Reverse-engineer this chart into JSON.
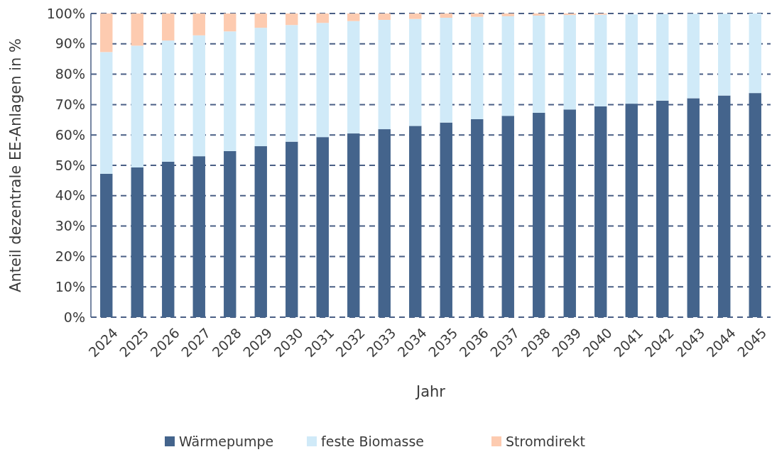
{
  "chart_data": {
    "type": "bar",
    "stacked": true,
    "xlabel": "Jahr",
    "ylabel": "Anteil dezentrale EE-Anlagen in %",
    "categories": [
      "2024",
      "2025",
      "2026",
      "2027",
      "2028",
      "2029",
      "2030",
      "2031",
      "2032",
      "2033",
      "2034",
      "2035",
      "2036",
      "2037",
      "2038",
      "2039",
      "2040",
      "2041",
      "2042",
      "2043",
      "2044",
      "2045"
    ],
    "series": [
      {
        "name": "Wärmepumpe",
        "color": "#44648c",
        "values": [
          47.2,
          49.3,
          51.2,
          53,
          54.7,
          56.3,
          57.8,
          59.3,
          60.5,
          61.9,
          63,
          64.1,
          65.2,
          66.3,
          67.3,
          68.4,
          69.4,
          70.3,
          71.3,
          72.1,
          73,
          73.8
        ]
      },
      {
        "name": "feste Biomasse",
        "color": "#d0eaf8",
        "values": [
          40.1,
          40.1,
          39.9,
          39.8,
          39.4,
          39,
          38.4,
          37.6,
          37,
          36,
          35.2,
          34.5,
          33.7,
          32.8,
          32,
          31.1,
          30.2,
          29.4,
          28.5,
          27.8,
          26.9,
          26.2
        ]
      },
      {
        "name": "Stromdirekt",
        "color": "#fdcbb0",
        "values": [
          12.7,
          10.6,
          8.9,
          7.2,
          5.9,
          4.7,
          3.8,
          3.1,
          2.5,
          2.1,
          1.8,
          1.4,
          1.1,
          0.9,
          0.7,
          0.5,
          0.4,
          null,
          null,
          null,
          null,
          0
        ]
      }
    ],
    "ylim": [
      0,
      100
    ],
    "yticks": [
      {
        "value": 0,
        "label": "0%"
      },
      {
        "value": 10,
        "label": "10%"
      },
      {
        "value": 20,
        "label": "20%"
      },
      {
        "value": 30,
        "label": "30%"
      },
      {
        "value": 40,
        "label": "40%"
      },
      {
        "value": 50,
        "label": "50%"
      },
      {
        "value": 60,
        "label": "60%"
      },
      {
        "value": 70,
        "label": "70%"
      },
      {
        "value": 80,
        "label": "80%"
      },
      {
        "value": 90,
        "label": "90%"
      },
      {
        "value": 100,
        "label": "100%"
      }
    ],
    "grid": "y",
    "legend": "bottom"
  }
}
